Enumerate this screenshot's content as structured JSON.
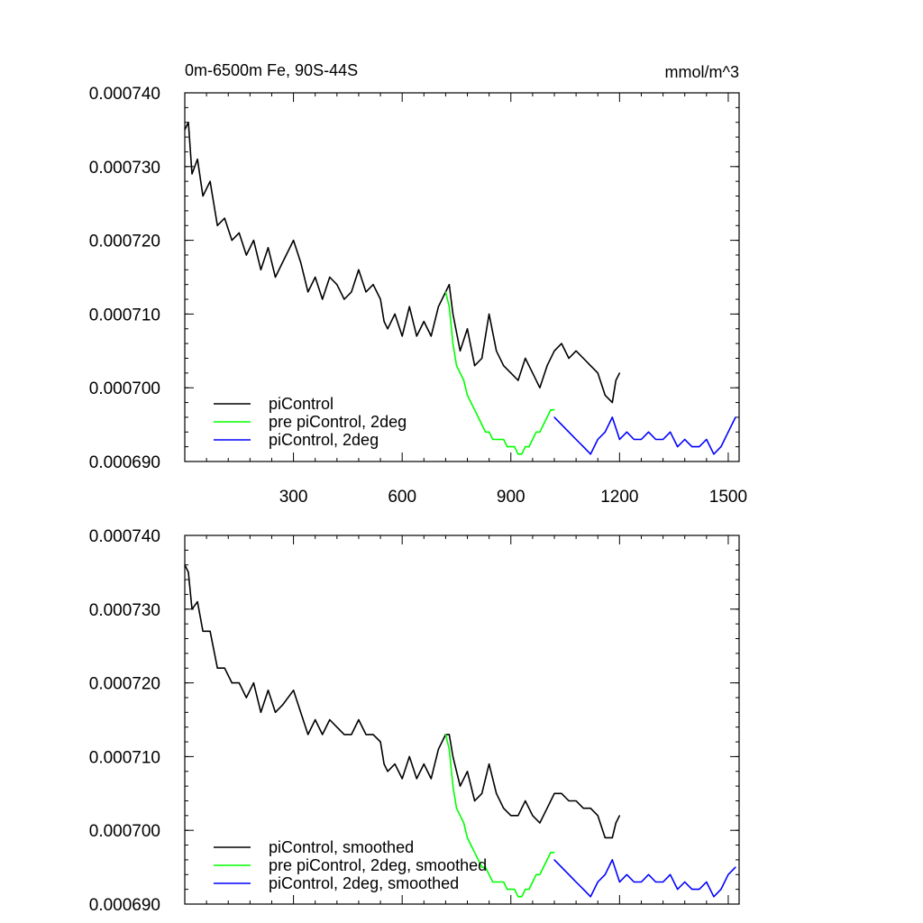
{
  "figure": {
    "title_left": "0m-6500m Fe, 90S-44S",
    "title_right": "mmol/m^3"
  },
  "chart_data": [
    {
      "type": "line",
      "title": "0m-6500m Fe, 90S-44S",
      "units": "mmol/m^3",
      "xlim": [
        0,
        1530
      ],
      "ylim": [
        0.00069,
        0.00074
      ],
      "x_ticks": [
        300,
        600,
        900,
        1200,
        1500
      ],
      "x_tick_labels": [
        "300",
        "600",
        "900",
        "1200",
        "1500"
      ],
      "y_ticks": [
        0.00069,
        0.0007,
        0.00071,
        0.00072,
        0.00073,
        0.00074
      ],
      "y_tick_labels": [
        "0.000690",
        "0.000700",
        "0.000710",
        "0.000720",
        "0.000730",
        "0.000740"
      ],
      "legend_position": "bottom-left",
      "series": [
        {
          "name": "piControl",
          "color": "#000000",
          "x": [
            0,
            10,
            20,
            35,
            50,
            70,
            90,
            110,
            130,
            150,
            170,
            190,
            210,
            230,
            250,
            270,
            300,
            320,
            340,
            360,
            380,
            400,
            420,
            440,
            460,
            480,
            500,
            520,
            540,
            550,
            560,
            580,
            600,
            620,
            640,
            660,
            680,
            700,
            720,
            730,
            740,
            760,
            780,
            800,
            820,
            840,
            860,
            880,
            900,
            920,
            940,
            960,
            980,
            1000,
            1020,
            1040,
            1060,
            1080,
            1100,
            1120,
            1140,
            1160,
            1180,
            1190,
            1200
          ],
          "y": [
            0.000735,
            0.000736,
            0.000729,
            0.000731,
            0.000726,
            0.000728,
            0.000722,
            0.000723,
            0.00072,
            0.000721,
            0.000718,
            0.00072,
            0.000716,
            0.000719,
            0.000715,
            0.000717,
            0.00072,
            0.000717,
            0.000713,
            0.000715,
            0.000712,
            0.000715,
            0.000714,
            0.000712,
            0.000713,
            0.000716,
            0.000713,
            0.000714,
            0.000712,
            0.000709,
            0.000708,
            0.00071,
            0.000707,
            0.000711,
            0.000707,
            0.000709,
            0.000707,
            0.000711,
            0.000713,
            0.000714,
            0.00071,
            0.000705,
            0.000708,
            0.000703,
            0.000704,
            0.00071,
            0.000705,
            0.000703,
            0.000702,
            0.000701,
            0.000704,
            0.000702,
            0.0007,
            0.000703,
            0.000705,
            0.000706,
            0.000704,
            0.000705,
            0.000704,
            0.000703,
            0.000702,
            0.000699,
            0.000698,
            0.000701,
            0.000702
          ]
        },
        {
          "name": "pre piControl, 2deg",
          "color": "#00ff00",
          "x": [
            720,
            730,
            740,
            750,
            760,
            770,
            780,
            790,
            800,
            810,
            820,
            830,
            840,
            850,
            860,
            870,
            880,
            890,
            900,
            910,
            920,
            930,
            940,
            950,
            960,
            970,
            980,
            990,
            1000,
            1010,
            1020
          ],
          "y": [
            0.000713,
            0.000711,
            0.000706,
            0.000703,
            0.000702,
            0.000701,
            0.000699,
            0.000698,
            0.000697,
            0.000696,
            0.000695,
            0.000694,
            0.000694,
            0.000693,
            0.000693,
            0.000693,
            0.000693,
            0.000692,
            0.000692,
            0.000692,
            0.000691,
            0.000691,
            0.000692,
            0.000692,
            0.000693,
            0.000694,
            0.000694,
            0.000695,
            0.000696,
            0.000697,
            0.000697
          ]
        },
        {
          "name": "piControl, 2deg",
          "color": "#0000ff",
          "x": [
            1020,
            1040,
            1060,
            1080,
            1100,
            1120,
            1140,
            1160,
            1180,
            1200,
            1220,
            1240,
            1260,
            1280,
            1300,
            1320,
            1340,
            1360,
            1380,
            1400,
            1420,
            1440,
            1460,
            1480,
            1500,
            1520
          ],
          "y": [
            0.000696,
            0.000695,
            0.000694,
            0.000693,
            0.000692,
            0.000691,
            0.000693,
            0.000694,
            0.000696,
            0.000693,
            0.000694,
            0.000693,
            0.000693,
            0.000694,
            0.000693,
            0.000693,
            0.000694,
            0.000692,
            0.000693,
            0.000692,
            0.000692,
            0.000693,
            0.000691,
            0.000692,
            0.000694,
            0.000696
          ]
        }
      ]
    },
    {
      "type": "line",
      "xlim": [
        0,
        1530
      ],
      "ylim": [
        0.00069,
        0.00074
      ],
      "x_ticks": [
        300,
        600,
        900,
        1200,
        1500
      ],
      "y_ticks": [
        0.00069,
        0.0007,
        0.00071,
        0.00072,
        0.00073,
        0.00074
      ],
      "y_tick_labels": [
        "0.000690",
        "0.000700",
        "0.000710",
        "0.000720",
        "0.000730",
        "0.000740"
      ],
      "legend_position": "bottom-left",
      "series": [
        {
          "name": "piControl, smoothed",
          "color": "#000000",
          "x": [
            0,
            10,
            20,
            35,
            50,
            70,
            90,
            110,
            130,
            150,
            170,
            190,
            210,
            230,
            250,
            270,
            300,
            320,
            340,
            360,
            380,
            400,
            420,
            440,
            460,
            480,
            500,
            520,
            540,
            550,
            560,
            580,
            600,
            620,
            640,
            660,
            680,
            700,
            720,
            730,
            740,
            760,
            780,
            800,
            820,
            840,
            860,
            880,
            900,
            920,
            940,
            960,
            980,
            1000,
            1020,
            1040,
            1060,
            1080,
            1100,
            1120,
            1140,
            1160,
            1180,
            1190,
            1200
          ],
          "y": [
            0.000736,
            0.000735,
            0.00073,
            0.000731,
            0.000727,
            0.000727,
            0.000722,
            0.000722,
            0.00072,
            0.00072,
            0.000718,
            0.00072,
            0.000716,
            0.000719,
            0.000716,
            0.000717,
            0.000719,
            0.000716,
            0.000713,
            0.000715,
            0.000713,
            0.000715,
            0.000714,
            0.000713,
            0.000713,
            0.000715,
            0.000713,
            0.000713,
            0.000712,
            0.000709,
            0.000708,
            0.000709,
            0.000707,
            0.00071,
            0.000707,
            0.000709,
            0.000707,
            0.000711,
            0.000713,
            0.000713,
            0.00071,
            0.000706,
            0.000708,
            0.000704,
            0.000705,
            0.000709,
            0.000705,
            0.000703,
            0.000702,
            0.000702,
            0.000704,
            0.000702,
            0.000701,
            0.000703,
            0.000705,
            0.000705,
            0.000704,
            0.000704,
            0.000703,
            0.000703,
            0.000702,
            0.000699,
            0.000699,
            0.000701,
            0.000702
          ]
        },
        {
          "name": "pre piControl, 2deg, smoothed",
          "color": "#00ff00",
          "x": [
            720,
            730,
            740,
            750,
            760,
            770,
            780,
            790,
            800,
            810,
            820,
            830,
            840,
            850,
            860,
            870,
            880,
            890,
            900,
            910,
            920,
            930,
            940,
            950,
            960,
            970,
            980,
            990,
            1000,
            1010,
            1020
          ],
          "y": [
            0.000713,
            0.000711,
            0.000706,
            0.000703,
            0.000702,
            0.000701,
            0.000699,
            0.000698,
            0.000697,
            0.000696,
            0.000695,
            0.000695,
            0.000694,
            0.000693,
            0.000693,
            0.000693,
            0.000693,
            0.000692,
            0.000692,
            0.000692,
            0.000691,
            0.000691,
            0.000692,
            0.000692,
            0.000693,
            0.000694,
            0.000694,
            0.000695,
            0.000696,
            0.000697,
            0.000697
          ]
        },
        {
          "name": "piControl, 2deg, smoothed",
          "color": "#0000ff",
          "x": [
            1020,
            1040,
            1060,
            1080,
            1100,
            1120,
            1140,
            1160,
            1180,
            1200,
            1220,
            1240,
            1260,
            1280,
            1300,
            1320,
            1340,
            1360,
            1380,
            1400,
            1420,
            1440,
            1460,
            1480,
            1500,
            1520
          ],
          "y": [
            0.000696,
            0.000695,
            0.000694,
            0.000693,
            0.000692,
            0.000691,
            0.000693,
            0.000694,
            0.000696,
            0.000693,
            0.000694,
            0.000693,
            0.000693,
            0.000694,
            0.000693,
            0.000693,
            0.000694,
            0.000692,
            0.000693,
            0.000692,
            0.000692,
            0.000693,
            0.000691,
            0.000692,
            0.000694,
            0.000695
          ]
        }
      ]
    }
  ]
}
